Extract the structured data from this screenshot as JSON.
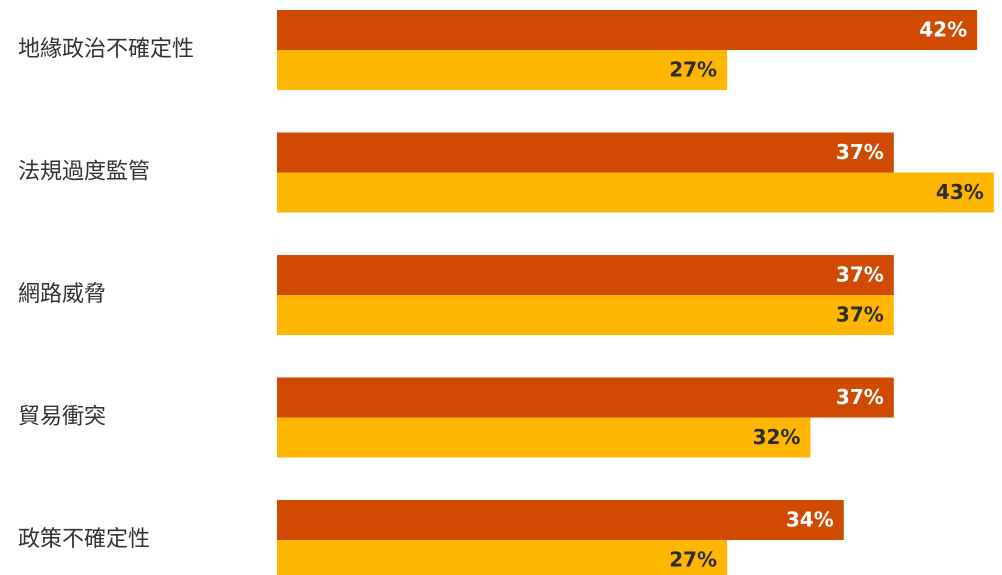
{
  "chart_data": {
    "type": "bar",
    "orientation": "horizontal",
    "categories": [
      "地緣政治不確定性",
      "法規過度監管",
      "網路威脅",
      "貿易衝突",
      "政策不確定性"
    ],
    "series": [
      {
        "values": [
          42,
          37,
          37,
          37,
          34
        ],
        "labels": [
          "42%",
          "37%",
          "37%",
          "37%",
          "34%"
        ],
        "color": "#D04A02",
        "label_color": "#ffffff"
      },
      {
        "values": [
          27,
          43,
          37,
          32,
          27
        ],
        "labels": [
          "27%",
          "43%",
          "37%",
          "32%",
          "27%"
        ],
        "color": "#FFB600",
        "label_color": "#2d2d2d"
      }
    ],
    "xlim": [
      0,
      43
    ],
    "grid": false,
    "legend": "none"
  }
}
